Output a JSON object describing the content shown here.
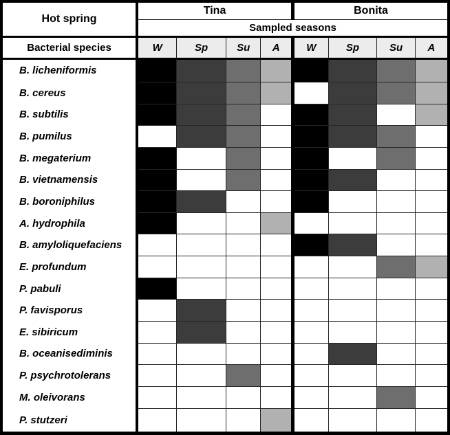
{
  "table": {
    "corner_header": "Hot spring",
    "row_header": "Bacterial species",
    "subheader": "Sampled seasons",
    "groups": [
      "Tina",
      "Bonita"
    ],
    "seasons": [
      "W",
      "Sp",
      "Su",
      "A"
    ]
  },
  "colors": {
    "shade_0": "#ffffff",
    "shade_1": "#b1b1b1",
    "shade_2": "#6e6e6e",
    "shade_3": "#3c3c3c",
    "shade_4": "#000000",
    "season_header_bg": "#ececec",
    "grid_line": "#262626",
    "frame": "#000000"
  },
  "chart_data": {
    "type": "heatmap",
    "col_group_label": "Hot spring",
    "col_groups": [
      "Tina",
      "Bonita"
    ],
    "col_label": "Sampled seasons",
    "columns": [
      "W",
      "Sp",
      "Su",
      "A"
    ],
    "row_label": "Bacterial species",
    "value_scale_note": "grayscale intensity level 0-4",
    "value_scale": {
      "0": "#ffffff",
      "1": "#b1b1b1",
      "2": "#6e6e6e",
      "3": "#3c3c3c",
      "4": "#000000"
    },
    "rows": [
      {
        "species": "B. licheniformis",
        "tina": [
          4,
          3,
          2,
          1
        ],
        "bonita": [
          4,
          3,
          2,
          1
        ]
      },
      {
        "species": "B. cereus",
        "tina": [
          4,
          3,
          2,
          1
        ],
        "bonita": [
          0,
          3,
          2,
          1
        ]
      },
      {
        "species": "B. subtilis",
        "tina": [
          4,
          3,
          2,
          0
        ],
        "bonita": [
          4,
          3,
          0,
          1
        ]
      },
      {
        "species": "B. pumilus",
        "tina": [
          0,
          3,
          2,
          0
        ],
        "bonita": [
          4,
          3,
          2,
          0
        ]
      },
      {
        "species": "B. megaterium",
        "tina": [
          4,
          0,
          2,
          0
        ],
        "bonita": [
          4,
          0,
          2,
          0
        ]
      },
      {
        "species": "B. vietnamensis",
        "tina": [
          4,
          0,
          2,
          0
        ],
        "bonita": [
          4,
          3,
          0,
          0
        ]
      },
      {
        "species": "B. boroniphilus",
        "tina": [
          4,
          3,
          0,
          0
        ],
        "bonita": [
          4,
          0,
          0,
          0
        ]
      },
      {
        "species": "A. hydrophila",
        "tina": [
          4,
          0,
          0,
          1
        ],
        "bonita": [
          0,
          0,
          0,
          0
        ]
      },
      {
        "species": "B. amyloliquefaciens",
        "tina": [
          0,
          0,
          0,
          0
        ],
        "bonita": [
          4,
          3,
          0,
          0
        ]
      },
      {
        "species": "E. profundum",
        "tina": [
          0,
          0,
          0,
          0
        ],
        "bonita": [
          0,
          0,
          2,
          1
        ]
      },
      {
        "species": "P. pabuli",
        "tina": [
          4,
          0,
          0,
          0
        ],
        "bonita": [
          0,
          0,
          0,
          0
        ]
      },
      {
        "species": "P. favisporus",
        "tina": [
          0,
          3,
          0,
          0
        ],
        "bonita": [
          0,
          0,
          0,
          0
        ]
      },
      {
        "species": "E. sibiricum",
        "tina": [
          0,
          3,
          0,
          0
        ],
        "bonita": [
          0,
          0,
          0,
          0
        ]
      },
      {
        "species": "B. oceanisediminis",
        "tina": [
          0,
          0,
          0,
          0
        ],
        "bonita": [
          0,
          3,
          0,
          0
        ]
      },
      {
        "species": "P. psychrotolerans",
        "tina": [
          0,
          0,
          2,
          0
        ],
        "bonita": [
          0,
          0,
          0,
          0
        ]
      },
      {
        "species": "M. oleivorans",
        "tina": [
          0,
          0,
          0,
          0
        ],
        "bonita": [
          0,
          0,
          2,
          0
        ]
      },
      {
        "species": "P. stutzeri",
        "tina": [
          0,
          0,
          0,
          1
        ],
        "bonita": [
          0,
          0,
          0,
          0
        ]
      }
    ]
  }
}
